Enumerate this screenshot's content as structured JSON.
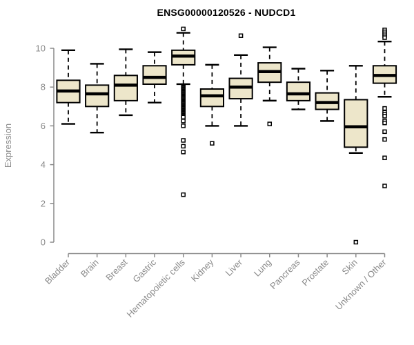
{
  "chart_data": {
    "type": "boxplot",
    "title": "ENSG00000120526 - NUDCD1",
    "xlabel": "",
    "ylabel": "Expression",
    "ylim": [
      0,
      10
    ],
    "yticks": [
      0,
      2,
      4,
      6,
      8,
      10
    ],
    "grid": false,
    "legend": "none",
    "categories": [
      "Bladder",
      "Brain",
      "Breast",
      "Gastric",
      "Hematopoietic cells",
      "Kidney",
      "Liver",
      "Lung",
      "Pancreas",
      "Prostate",
      "Skin",
      "Unknown / Other"
    ],
    "series": [
      {
        "name": "Bladder",
        "whisker_low": 6.1,
        "q1": 7.2,
        "median": 7.8,
        "q3": 8.35,
        "whisker_high": 9.9,
        "outliers": []
      },
      {
        "name": "Brain",
        "whisker_low": 5.65,
        "q1": 7.0,
        "median": 7.65,
        "q3": 8.1,
        "whisker_high": 9.2,
        "outliers": []
      },
      {
        "name": "Breast",
        "whisker_low": 6.55,
        "q1": 7.3,
        "median": 8.1,
        "q3": 8.6,
        "whisker_high": 9.95,
        "outliers": []
      },
      {
        "name": "Gastric",
        "whisker_low": 7.2,
        "q1": 8.15,
        "median": 8.5,
        "q3": 9.1,
        "whisker_high": 9.8,
        "outliers": []
      },
      {
        "name": "Hematopoietic cells",
        "whisker_low": 8.15,
        "q1": 9.15,
        "median": 9.6,
        "q3": 9.9,
        "whisker_high": 10.8,
        "outliers": [
          11.0,
          8.05,
          8.0,
          7.95,
          7.9,
          7.85,
          7.8,
          7.75,
          7.7,
          7.65,
          7.6,
          7.55,
          7.5,
          7.45,
          7.4,
          7.35,
          7.3,
          7.25,
          7.2,
          7.15,
          7.1,
          7.05,
          7.0,
          6.95,
          6.9,
          6.85,
          6.8,
          6.75,
          6.7,
          6.65,
          6.6,
          6.55,
          6.5,
          6.45,
          6.25,
          6.0,
          5.25,
          4.95,
          4.65,
          2.45
        ]
      },
      {
        "name": "Kidney",
        "whisker_low": 6.0,
        "q1": 7.0,
        "median": 7.55,
        "q3": 7.9,
        "whisker_high": 9.15,
        "outliers": [
          5.1
        ]
      },
      {
        "name": "Liver",
        "whisker_low": 6.0,
        "q1": 7.4,
        "median": 8.0,
        "q3": 8.45,
        "whisker_high": 9.65,
        "outliers": [
          10.65
        ]
      },
      {
        "name": "Lung",
        "whisker_low": 7.3,
        "q1": 8.25,
        "median": 8.8,
        "q3": 9.25,
        "whisker_high": 10.05,
        "outliers": [
          6.1
        ]
      },
      {
        "name": "Pancreas",
        "whisker_low": 6.85,
        "q1": 7.3,
        "median": 7.65,
        "q3": 8.25,
        "whisker_high": 8.95,
        "outliers": []
      },
      {
        "name": "Prostate",
        "whisker_low": 6.25,
        "q1": 6.85,
        "median": 7.2,
        "q3": 7.7,
        "whisker_high": 8.85,
        "outliers": []
      },
      {
        "name": "Skin",
        "whisker_low": 4.6,
        "q1": 4.9,
        "median": 5.95,
        "q3": 7.35,
        "whisker_high": 9.1,
        "outliers": [
          0.0
        ]
      },
      {
        "name": "Unknown / Other",
        "whisker_low": 7.5,
        "q1": 8.2,
        "median": 8.6,
        "q3": 9.1,
        "whisker_high": 10.35,
        "outliers": [
          10.95,
          10.85,
          10.75,
          10.65,
          10.55,
          6.9,
          6.7,
          6.6,
          6.5,
          6.25,
          6.15,
          5.7,
          5.3,
          4.35,
          2.9
        ]
      }
    ]
  },
  "colors": {
    "box_fill": "#ede6ca",
    "box_border": "#000000",
    "median": "#000000",
    "whisker": "#000000",
    "outlier_stroke": "#000000",
    "outlier_fill": "#ffffff",
    "axis": "#8a8a8a",
    "tick_label": "#8a8a8a",
    "title": "#000000"
  }
}
